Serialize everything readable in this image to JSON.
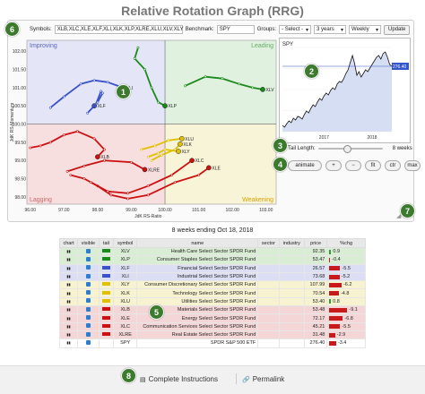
{
  "app": {
    "title": "Relative Rotation Graph (RRG)"
  },
  "controls": {
    "symbols_label": "Symbols:",
    "symbols_value": "XLB,XLC,XLE,XLF,XLI,XLK,XLP,XLRE,XLU,XLV,XLY",
    "benchmark_label": "Benchmark:",
    "benchmark_value": "SPY",
    "groups_label": "Groups:",
    "groups_value": "- Select -",
    "period_value": "3 years",
    "frequency_value": "Weekly",
    "update_label": "Update"
  },
  "rrg": {
    "quadrants": {
      "improving": "Improving",
      "leading": "Leading",
      "lagging": "Lagging",
      "weakening": "Weakening"
    },
    "ylabel": "JdK RS-Momentum",
    "xlabel": "JdK RS-Ratio",
    "xticks": [
      "96.00",
      "97.00",
      "98.00",
      "99.00",
      "100.00",
      "101.00",
      "102.00",
      "103.00"
    ],
    "yticks": [
      "102.00",
      "101.50",
      "101.00",
      "100.50",
      "100.00",
      "99.50",
      "99.00",
      "98.50",
      "98.00"
    ],
    "xlim": [
      95.9,
      103.3
    ],
    "ylim": [
      97.8,
      102.3
    ],
    "colors": {
      "improving": "#e4e6f7",
      "leading": "#e0f1e0",
      "lagging": "#f7dfe0",
      "weakening": "#f7f4d8"
    },
    "tails": [
      {
        "symbol": "XLI",
        "color": "#3a52c8",
        "points": [
          [
            96.6,
            100.45
          ],
          [
            97.0,
            100.75
          ],
          [
            97.5,
            101.1
          ],
          [
            97.9,
            101.2
          ],
          [
            98.3,
            101.15
          ],
          [
            98.75,
            101.0
          ]
        ]
      },
      {
        "symbol": "XLF",
        "color": "#3a52c8",
        "points": [
          [
            97.7,
            100.3
          ],
          [
            97.95,
            100.55
          ],
          [
            98.1,
            100.9
          ],
          [
            98.15,
            100.85
          ],
          [
            98.0,
            100.6
          ],
          [
            97.9,
            100.5
          ]
        ]
      },
      {
        "symbol": "XLV",
        "color": "#1a8a1a",
        "points": [
          [
            100.6,
            101.05
          ],
          [
            101.2,
            101.3
          ],
          [
            101.7,
            101.25
          ],
          [
            102.2,
            101.1
          ],
          [
            102.6,
            101.0
          ],
          [
            102.9,
            100.95
          ]
        ]
      },
      {
        "symbol": "XLP",
        "color": "#1a8a1a",
        "points": [
          [
            99.2,
            102.1
          ],
          [
            99.1,
            101.8
          ],
          [
            99.4,
            101.5
          ],
          [
            99.6,
            101.0
          ],
          [
            99.8,
            100.6
          ],
          [
            100.0,
            100.5
          ]
        ]
      },
      {
        "symbol": "XLU",
        "color": "#e0c000",
        "points": [
          [
            99.3,
            99.3
          ],
          [
            99.7,
            99.4
          ],
          [
            100.1,
            99.55
          ],
          [
            100.5,
            99.6
          ]
        ]
      },
      {
        "symbol": "XLK",
        "color": "#e0c000",
        "points": [
          [
            99.6,
            99.0
          ],
          [
            99.9,
            99.15
          ],
          [
            100.3,
            99.3
          ],
          [
            100.45,
            99.45
          ]
        ]
      },
      {
        "symbol": "XLY",
        "color": "#e0c000",
        "points": [
          [
            99.5,
            99.1
          ],
          [
            99.8,
            99.2
          ],
          [
            100.0,
            99.3
          ],
          [
            100.4,
            99.25
          ]
        ]
      },
      {
        "symbol": "XLB",
        "color": "#cc1111",
        "points": [
          [
            96.0,
            99.35
          ],
          [
            96.3,
            99.4
          ],
          [
            96.6,
            99.5
          ],
          [
            97.0,
            99.7
          ],
          [
            97.4,
            99.8
          ],
          [
            97.9,
            99.6
          ],
          [
            98.2,
            99.3
          ],
          [
            98.0,
            99.1
          ]
        ]
      },
      {
        "symbol": "XLRE",
        "color": "#cc1111",
        "points": [
          [
            97.1,
            98.7
          ],
          [
            97.6,
            98.85
          ],
          [
            98.2,
            99.0
          ],
          [
            99.0,
            98.95
          ],
          [
            99.4,
            98.75
          ]
        ]
      },
      {
        "symbol": "XLE",
        "color": "#cc1111",
        "points": [
          [
            97.2,
            98.6
          ],
          [
            97.6,
            98.5
          ],
          [
            98.0,
            98.3
          ],
          [
            98.4,
            98.05
          ],
          [
            98.9,
            97.95
          ],
          [
            99.5,
            98.05
          ],
          [
            100.3,
            98.4
          ],
          [
            101.0,
            98.6
          ],
          [
            101.3,
            98.8
          ]
        ]
      },
      {
        "symbol": "XLC",
        "color": "#cc1111",
        "points": [
          [
            97.8,
            98.4
          ],
          [
            98.3,
            98.15
          ],
          [
            98.9,
            98.1
          ],
          [
            99.5,
            98.3
          ],
          [
            100.2,
            98.6
          ],
          [
            100.8,
            99.0
          ]
        ]
      }
    ]
  },
  "spy_chart": {
    "symbol": "SPY",
    "price_label": "276.40",
    "xticks": [
      "2017",
      "2018"
    ],
    "values": [
      210,
      208,
      212,
      215,
      213,
      218,
      216,
      220,
      219,
      217,
      222,
      226,
      224,
      229,
      233,
      231,
      236,
      240,
      238,
      243,
      246,
      244,
      249,
      252,
      250,
      256,
      259,
      258,
      262,
      268,
      272,
      280,
      288,
      279,
      266,
      270,
      264,
      268,
      272,
      270,
      274,
      278,
      282,
      286,
      288,
      284,
      290,
      292,
      286,
      278,
      276
    ]
  },
  "tail": {
    "label": "Tail Length:",
    "value_label": "8 weeks"
  },
  "animation": {
    "animate": "animate",
    "plus": "+",
    "minus": "−",
    "fit": "fit",
    "ctr": "ctr",
    "max": "max"
  },
  "caption": "8 weeks ending Oct 18, 2018",
  "table": {
    "columns": [
      "chart",
      "visible",
      "tail",
      "symbol",
      "name",
      "sector",
      "industry",
      "price",
      "%chg"
    ],
    "rows": [
      {
        "symbol": "XLV",
        "name": "Health Care Select Sector SPDR Fund",
        "price": "92.35",
        "chg": "0.9",
        "pct": 0.9,
        "row_color": "#d9ecd4",
        "tail_color": "#1a8a1a"
      },
      {
        "symbol": "XLP",
        "name": "Consumer Staples Select Sector SPDR Fund",
        "price": "53.47",
        "chg": "-0.4",
        "pct": -0.4,
        "row_color": "#d9ecd4",
        "tail_color": "#1a8a1a"
      },
      {
        "symbol": "XLF",
        "name": "Financial Select Sector SPDR Fund",
        "price": "26.57",
        "chg": "-5.5",
        "pct": -5.5,
        "row_color": "#dcdff4",
        "tail_color": "#3a52c8"
      },
      {
        "symbol": "XLI",
        "name": "Industrial Select Sector SPDR Fund",
        "price": "73.68",
        "chg": "-5.2",
        "pct": -5.2,
        "row_color": "#dcdff4",
        "tail_color": "#3a52c8"
      },
      {
        "symbol": "XLY",
        "name": "Consumer Discretionary Select Sector SPDR Fund",
        "price": "107.99",
        "chg": "-6.2",
        "pct": -6.2,
        "row_color": "#f7f2cf",
        "tail_color": "#e0c000"
      },
      {
        "symbol": "XLK",
        "name": "Technology Select Sector SPDR Fund",
        "price": "70.54",
        "chg": "-4.8",
        "pct": -4.8,
        "row_color": "#f7f2cf",
        "tail_color": "#e0c000"
      },
      {
        "symbol": "XLU",
        "name": "Utilities Select Sector SPDR Fund",
        "price": "53.40",
        "chg": "0.8",
        "pct": 0.8,
        "row_color": "#f7f2cf",
        "tail_color": "#e0c000"
      },
      {
        "symbol": "XLB",
        "name": "Materials Select Sector SPDR Fund",
        "price": "53.48",
        "chg": "-9.1",
        "pct": -9.1,
        "row_color": "#f5d6d6",
        "tail_color": "#cc1111"
      },
      {
        "symbol": "XLE",
        "name": "Energy Select Sector SPDR Fund",
        "price": "72.17",
        "chg": "-6.8",
        "pct": -6.8,
        "row_color": "#f5d6d6",
        "tail_color": "#cc1111"
      },
      {
        "symbol": "XLC",
        "name": "Communication Services Select Sector SPDR Fund",
        "price": "45.21",
        "chg": "-5.5",
        "pct": -5.5,
        "row_color": "#f5d6d6",
        "tail_color": "#cc1111"
      },
      {
        "symbol": "XLRE",
        "name": "Real Estate Select Sector SPDR Fund",
        "price": "31.48",
        "chg": "-2.9",
        "pct": -2.9,
        "row_color": "#f5d6d6",
        "tail_color": "#cc1111"
      },
      {
        "symbol": "SPY",
        "name": "SPDR S&P 500 ETF",
        "price": "276.40",
        "chg": "-3.4",
        "pct": -3.4,
        "row_color": "#ffffff",
        "tail_color": "#ffffff"
      }
    ]
  },
  "footer": {
    "instructions": "Complete Instructions",
    "permalink": "Permalink"
  },
  "badges": [
    "1",
    "2",
    "3",
    "4",
    "5",
    "6",
    "7",
    "8"
  ]
}
